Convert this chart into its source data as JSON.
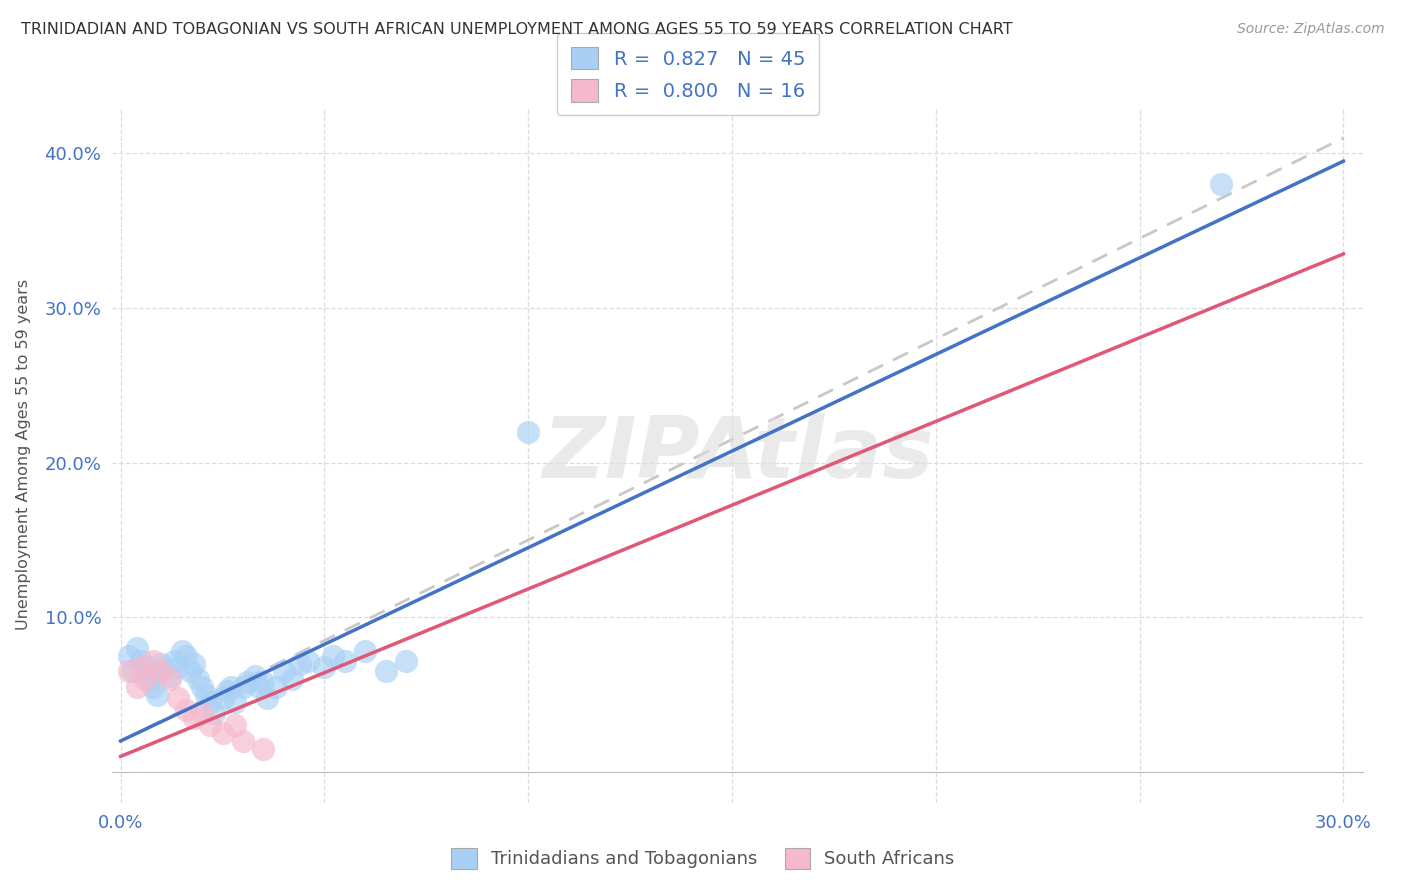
{
  "title": "TRINIDADIAN AND TOBAGONIAN VS SOUTH AFRICAN UNEMPLOYMENT AMONG AGES 55 TO 59 YEARS CORRELATION CHART",
  "source": "Source: ZipAtlas.com",
  "ylabel": "Unemployment Among Ages 55 to 59 years",
  "xlim": [
    -0.002,
    0.305
  ],
  "ylim": [
    -0.02,
    0.43
  ],
  "xticks": [
    0.0,
    0.05,
    0.1,
    0.15,
    0.2,
    0.25,
    0.3
  ],
  "yticks": [
    0.0,
    0.1,
    0.2,
    0.3,
    0.4
  ],
  "legend1_r": "0.827",
  "legend1_n": "45",
  "legend2_r": "0.800",
  "legend2_n": "16",
  "legend1_label": "Trinidadians and Tobagonians",
  "legend2_label": "South Africans",
  "blue_color": "#A8D0F5",
  "pink_color": "#F5B8CC",
  "blue_line_color": "#4472C4",
  "pink_line_color": "#E05878",
  "dashed_line_color": "#C8C8C8",
  "watermark": "ZIPAtlas",
  "background_color": "#FFFFFF",
  "title_fontsize": 11.5,
  "blue_scatter": [
    [
      0.002,
      0.075
    ],
    [
      0.003,
      0.065
    ],
    [
      0.004,
      0.08
    ],
    [
      0.005,
      0.072
    ],
    [
      0.006,
      0.068
    ],
    [
      0.007,
      0.06
    ],
    [
      0.008,
      0.055
    ],
    [
      0.009,
      0.05
    ],
    [
      0.01,
      0.065
    ],
    [
      0.01,
      0.07
    ],
    [
      0.012,
      0.062
    ],
    [
      0.013,
      0.072
    ],
    [
      0.014,
      0.068
    ],
    [
      0.015,
      0.078
    ],
    [
      0.016,
      0.075
    ],
    [
      0.017,
      0.065
    ],
    [
      0.018,
      0.07
    ],
    [
      0.019,
      0.06
    ],
    [
      0.02,
      0.055
    ],
    [
      0.021,
      0.05
    ],
    [
      0.022,
      0.045
    ],
    [
      0.023,
      0.038
    ],
    [
      0.025,
      0.048
    ],
    [
      0.026,
      0.052
    ],
    [
      0.027,
      0.055
    ],
    [
      0.028,
      0.045
    ],
    [
      0.03,
      0.055
    ],
    [
      0.031,
      0.058
    ],
    [
      0.033,
      0.062
    ],
    [
      0.034,
      0.055
    ],
    [
      0.035,
      0.058
    ],
    [
      0.036,
      0.048
    ],
    [
      0.038,
      0.055
    ],
    [
      0.04,
      0.065
    ],
    [
      0.042,
      0.06
    ],
    [
      0.044,
      0.07
    ],
    [
      0.046,
      0.072
    ],
    [
      0.05,
      0.068
    ],
    [
      0.052,
      0.075
    ],
    [
      0.055,
      0.072
    ],
    [
      0.06,
      0.078
    ],
    [
      0.065,
      0.065
    ],
    [
      0.07,
      0.072
    ],
    [
      0.1,
      0.22
    ],
    [
      0.27,
      0.38
    ]
  ],
  "pink_scatter": [
    [
      0.002,
      0.065
    ],
    [
      0.004,
      0.055
    ],
    [
      0.005,
      0.068
    ],
    [
      0.006,
      0.06
    ],
    [
      0.008,
      0.072
    ],
    [
      0.01,
      0.065
    ],
    [
      0.012,
      0.06
    ],
    [
      0.014,
      0.048
    ],
    [
      0.016,
      0.04
    ],
    [
      0.018,
      0.035
    ],
    [
      0.02,
      0.038
    ],
    [
      0.022,
      0.03
    ],
    [
      0.025,
      0.025
    ],
    [
      0.028,
      0.03
    ],
    [
      0.03,
      0.02
    ],
    [
      0.035,
      0.015
    ]
  ],
  "blue_trend_x": [
    0.0,
    0.3
  ],
  "blue_trend_y": [
    0.02,
    0.395
  ],
  "pink_trend_x": [
    0.0,
    0.3
  ],
  "pink_trend_y": [
    0.01,
    0.335
  ],
  "dashed_trend_x": [
    0.0,
    0.3
  ],
  "dashed_trend_y": [
    0.02,
    0.41
  ]
}
